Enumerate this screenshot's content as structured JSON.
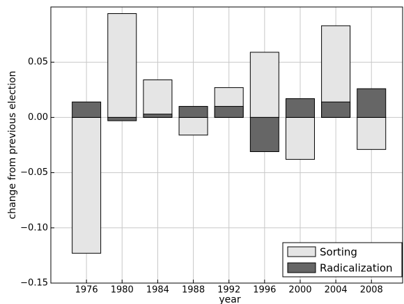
{
  "chart_data": {
    "type": "bar",
    "x": [
      1976,
      1980,
      1984,
      1988,
      1992,
      1996,
      2000,
      2004,
      2008
    ],
    "xlim": [
      1972,
      2011.5
    ],
    "xticks": [
      1976,
      1980,
      1984,
      1988,
      1992,
      1996,
      2000,
      2004,
      2008
    ],
    "ylim": [
      -0.15,
      0.1
    ],
    "yticks": [
      {
        "value": 0.05,
        "label": "0.05"
      },
      {
        "value": 0,
        "label": "0.00"
      },
      {
        "value": -0.05,
        "label": "−0.05"
      },
      {
        "value": -0.1,
        "label": "−0.10"
      },
      {
        "value": -0.15,
        "label": "−0.15"
      }
    ],
    "xlabel": "year",
    "ylabel": "change from previous election",
    "grid": true,
    "legend_position": "lower right",
    "series": [
      {
        "name": "Sorting",
        "color": "#e5e5e5",
        "values": [
          -0.123,
          0.094,
          0.034,
          -0.016,
          0.027,
          0.059,
          -0.038,
          0.083,
          -0.029
        ]
      },
      {
        "name": "Radicalization",
        "color": "#666666",
        "values": [
          0.014,
          -0.003,
          0.003,
          0.01,
          0.01,
          -0.031,
          0.017,
          0.014,
          0.026
        ]
      }
    ]
  }
}
